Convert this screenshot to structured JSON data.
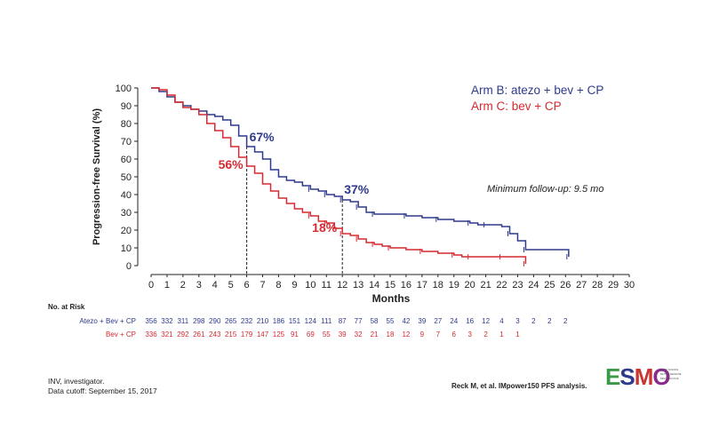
{
  "chart_data": {
    "type": "line",
    "subtype": "kaplan-meier",
    "xlabel": "Months",
    "ylabel": "Progression-free Survival (%)",
    "xlim": [
      0,
      30
    ],
    "ylim": [
      0,
      100
    ],
    "x_ticks": [
      "0",
      "1",
      "2",
      "3",
      "4",
      "5",
      "6",
      "7",
      "8",
      "9",
      "10",
      "11",
      "12",
      "13",
      "14",
      "15",
      "16",
      "17",
      "18",
      "19",
      "20",
      "21",
      "22",
      "23",
      "24",
      "25",
      "26",
      "27",
      "28",
      "29",
      "30"
    ],
    "y_ticks": [
      "0",
      "10",
      "20",
      "30",
      "40",
      "50",
      "60",
      "70",
      "80",
      "90",
      "100"
    ],
    "series": [
      {
        "name": "Arm B: atezo + bev + CP",
        "color": "#2e3a8c",
        "x": [
          0,
          0.5,
          1,
          1.5,
          2,
          2.5,
          3,
          3.5,
          4,
          4.5,
          5,
          5.5,
          6,
          6.5,
          7,
          7.5,
          8,
          8.5,
          9,
          9.5,
          10,
          10.5,
          11,
          11.5,
          12,
          12.5,
          13,
          13.5,
          14,
          15,
          16,
          17,
          18,
          19,
          20,
          20.5,
          21,
          22,
          22.5,
          23,
          23.5,
          25,
          26.2
        ],
        "values": [
          100,
          98,
          95,
          92,
          90,
          88,
          87,
          85,
          84,
          82,
          79,
          73,
          67,
          64,
          60,
          54,
          50,
          48,
          47,
          45,
          43,
          42,
          40,
          39,
          37,
          36,
          33,
          30,
          29,
          29,
          28,
          27,
          26,
          25,
          24,
          23,
          23,
          22,
          18,
          14,
          9,
          9,
          5
        ]
      },
      {
        "name": "Arm C: bev + CP",
        "color": "#d42b32",
        "x": [
          0,
          0.5,
          1,
          1.5,
          2,
          2.5,
          3,
          3.5,
          4,
          4.5,
          5,
          5.5,
          6,
          6.5,
          7,
          7.5,
          8,
          8.5,
          9,
          9.5,
          10,
          10.5,
          11,
          11.5,
          12,
          12.5,
          13,
          13.5,
          14,
          14.5,
          15,
          16,
          17,
          18,
          19,
          19.5,
          20,
          21,
          22,
          23,
          23.5
        ],
        "values": [
          100,
          99,
          96,
          92,
          89,
          88,
          85,
          80,
          76,
          72,
          67,
          61,
          56,
          52,
          46,
          42,
          38,
          35,
          32,
          30,
          28,
          25,
          24,
          21,
          18,
          17,
          15,
          13,
          12,
          11,
          10,
          9,
          8,
          7,
          6,
          5,
          5,
          5,
          5,
          5,
          1
        ]
      }
    ],
    "legend": [
      "Arm B: atezo + bev + CP",
      "Arm C: bev + CP"
    ],
    "legend_position": "top-right",
    "annotations": [
      {
        "text": "67%",
        "series": "Arm B: atezo + bev + CP",
        "at_month": 6,
        "value": 67
      },
      {
        "text": "56%",
        "series": "Arm C: bev + CP",
        "at_month": 6,
        "value": 56
      },
      {
        "text": "37%",
        "series": "Arm B: atezo + bev + CP",
        "at_month": 12,
        "value": 37
      },
      {
        "text": "18%",
        "series": "Arm C: bev + CP",
        "at_month": 12,
        "value": 18
      }
    ],
    "reference_lines_at_months": [
      6,
      12
    ],
    "note": "Minimum follow-up: 9.5 mo"
  },
  "risk_table": {
    "title": "No. at Risk",
    "rows": [
      {
        "label": "Atezo + Bev + CP",
        "color": "#2e3a8c",
        "values": [
          "356",
          "332",
          "311",
          "298",
          "290",
          "265",
          "232",
          "210",
          "186",
          "151",
          "124",
          "111",
          "87",
          "77",
          "58",
          "55",
          "42",
          "39",
          "27",
          "24",
          "16",
          "12",
          "4",
          "3",
          "2",
          "2",
          "2"
        ]
      },
      {
        "label": "Bev + CP",
        "color": "#d42b32",
        "values": [
          "336",
          "321",
          "292",
          "261",
          "243",
          "215",
          "179",
          "147",
          "125",
          "91",
          "69",
          "55",
          "39",
          "32",
          "21",
          "18",
          "12",
          "9",
          "7",
          "6",
          "3",
          "2",
          "1",
          "1"
        ]
      }
    ]
  },
  "footer": {
    "line1": "INV, investigator.",
    "line2": "Data cutoff: September 15, 2017",
    "source": "Reck M, et al. IMpower150 PFS analysis."
  },
  "logo": {
    "text": "ESMO",
    "tagline": [
      "GOOD SCIENCE",
      "BETTER MEDICINE",
      "BEST PRACTICE"
    ],
    "colors": [
      "#3a9a46",
      "#2e3a8c",
      "#c9352f",
      "#8a2a8c"
    ]
  }
}
